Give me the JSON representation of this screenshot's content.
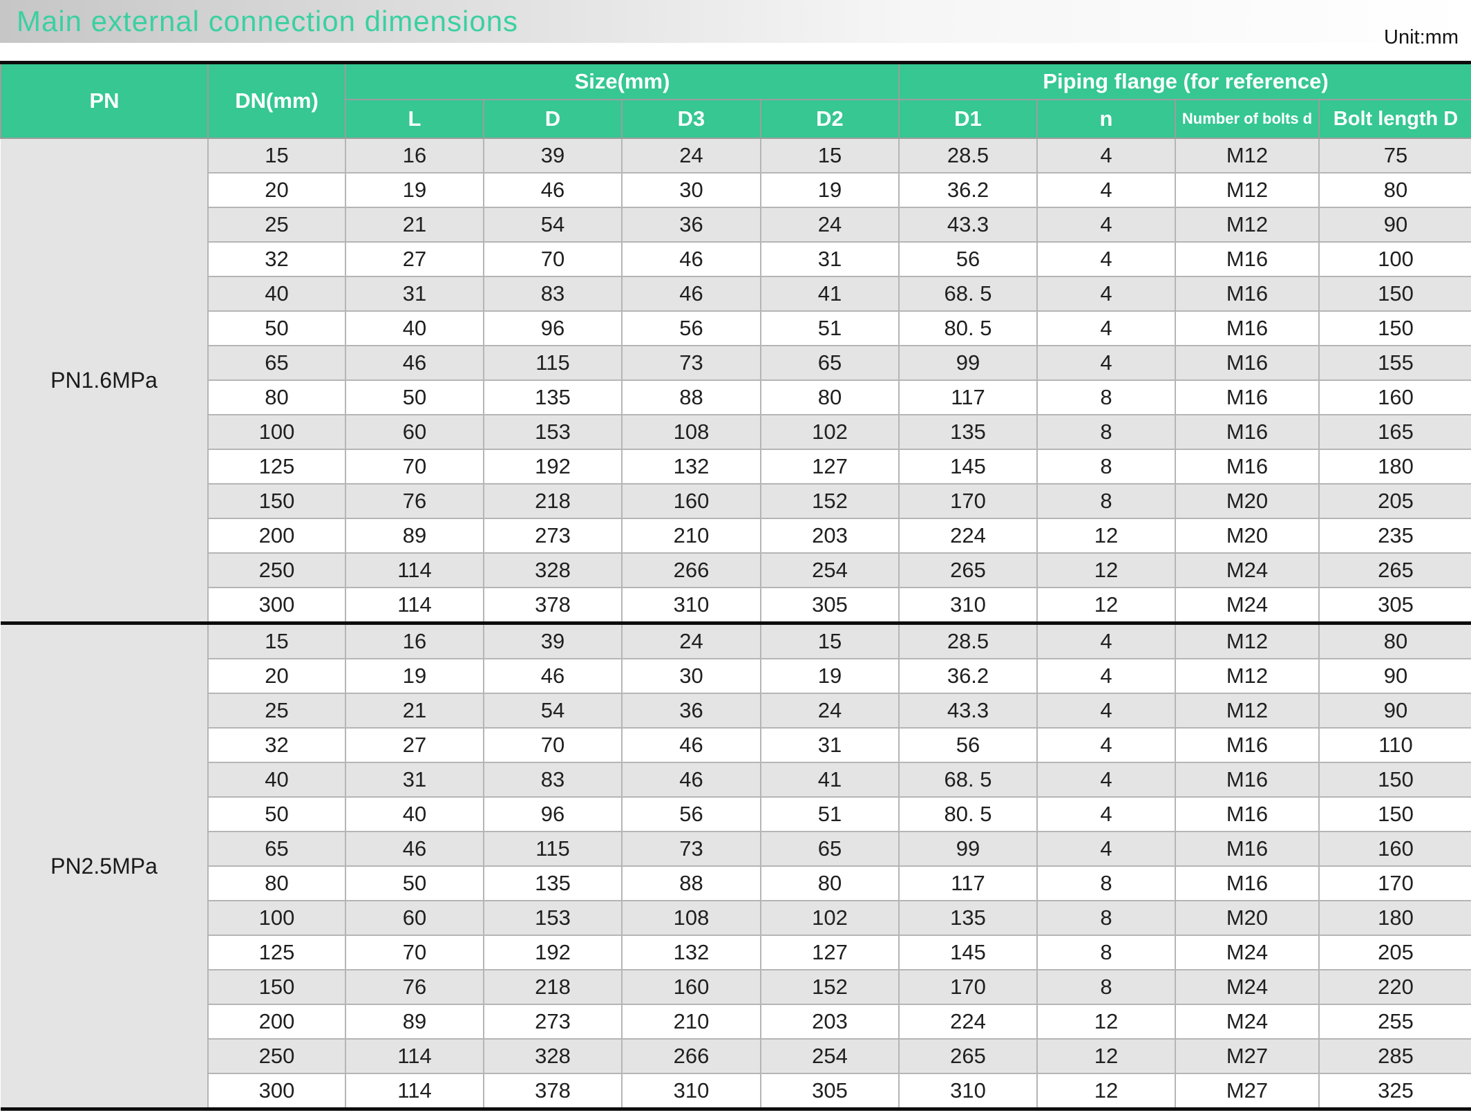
{
  "page": {
    "title": "Main external connection dimensions",
    "unit_label": "Unit:mm"
  },
  "colors": {
    "header_green": "#36c793",
    "title_green": "#3bd0a0",
    "row_shade_gray": "#e4e4e4",
    "grid_gray": "#b5b5b5",
    "divider_black": "#0d0d0d"
  },
  "table": {
    "group_headers": {
      "pn": "PN",
      "dn": "DN(mm)",
      "size": "Size(mm)",
      "piping": "Piping flange (for reference)"
    },
    "sub_headers": [
      "L",
      "D",
      "D3",
      "D2",
      "D1",
      "n",
      "Number of bolts d",
      "Bolt length D"
    ],
    "sections": [
      {
        "pn": "PN1.6MPa",
        "rows": [
          [
            "15",
            "16",
            "39",
            "24",
            "15",
            "28.5",
            "4",
            "M12",
            "75"
          ],
          [
            "20",
            "19",
            "46",
            "30",
            "19",
            "36.2",
            "4",
            "M12",
            "80"
          ],
          [
            "25",
            "21",
            "54",
            "36",
            "24",
            "43.3",
            "4",
            "M12",
            "90"
          ],
          [
            "32",
            "27",
            "70",
            "46",
            "31",
            "56",
            "4",
            "M16",
            "100"
          ],
          [
            "40",
            "31",
            "83",
            "46",
            "41",
            "68. 5",
            "4",
            "M16",
            "150"
          ],
          [
            "50",
            "40",
            "96",
            "56",
            "51",
            "80. 5",
            "4",
            "M16",
            "150"
          ],
          [
            "65",
            "46",
            "115",
            "73",
            "65",
            "99",
            "4",
            "M16",
            "155"
          ],
          [
            "80",
            "50",
            "135",
            "88",
            "80",
            "117",
            "8",
            "M16",
            "160"
          ],
          [
            "100",
            "60",
            "153",
            "108",
            "102",
            "135",
            "8",
            "M16",
            "165"
          ],
          [
            "125",
            "70",
            "192",
            "132",
            "127",
            "145",
            "8",
            "M16",
            "180"
          ],
          [
            "150",
            "76",
            "218",
            "160",
            "152",
            "170",
            "8",
            "M20",
            "205"
          ],
          [
            "200",
            "89",
            "273",
            "210",
            "203",
            "224",
            "12",
            "M20",
            "235"
          ],
          [
            "250",
            "114",
            "328",
            "266",
            "254",
            "265",
            "12",
            "M24",
            "265"
          ],
          [
            "300",
            "114",
            "378",
            "310",
            "305",
            "310",
            "12",
            "M24",
            "305"
          ]
        ]
      },
      {
        "pn": "PN2.5MPa",
        "rows": [
          [
            "15",
            "16",
            "39",
            "24",
            "15",
            "28.5",
            "4",
            "M12",
            "80"
          ],
          [
            "20",
            "19",
            "46",
            "30",
            "19",
            "36.2",
            "4",
            "M12",
            "90"
          ],
          [
            "25",
            "21",
            "54",
            "36",
            "24",
            "43.3",
            "4",
            "M12",
            "90"
          ],
          [
            "32",
            "27",
            "70",
            "46",
            "31",
            "56",
            "4",
            "M16",
            "110"
          ],
          [
            "40",
            "31",
            "83",
            "46",
            "41",
            "68. 5",
            "4",
            "M16",
            "150"
          ],
          [
            "50",
            "40",
            "96",
            "56",
            "51",
            "80. 5",
            "4",
            "M16",
            "150"
          ],
          [
            "65",
            "46",
            "115",
            "73",
            "65",
            "99",
            "4",
            "M16",
            "160"
          ],
          [
            "80",
            "50",
            "135",
            "88",
            "80",
            "117",
            "8",
            "M16",
            "170"
          ],
          [
            "100",
            "60",
            "153",
            "108",
            "102",
            "135",
            "8",
            "M20",
            "180"
          ],
          [
            "125",
            "70",
            "192",
            "132",
            "127",
            "145",
            "8",
            "M24",
            "205"
          ],
          [
            "150",
            "76",
            "218",
            "160",
            "152",
            "170",
            "8",
            "M24",
            "220"
          ],
          [
            "200",
            "89",
            "273",
            "210",
            "203",
            "224",
            "12",
            "M24",
            "255"
          ],
          [
            "250",
            "114",
            "328",
            "266",
            "254",
            "265",
            "12",
            "M27",
            "285"
          ],
          [
            "300",
            "114",
            "378",
            "310",
            "305",
            "310",
            "12",
            "M27",
            "325"
          ]
        ]
      }
    ]
  }
}
